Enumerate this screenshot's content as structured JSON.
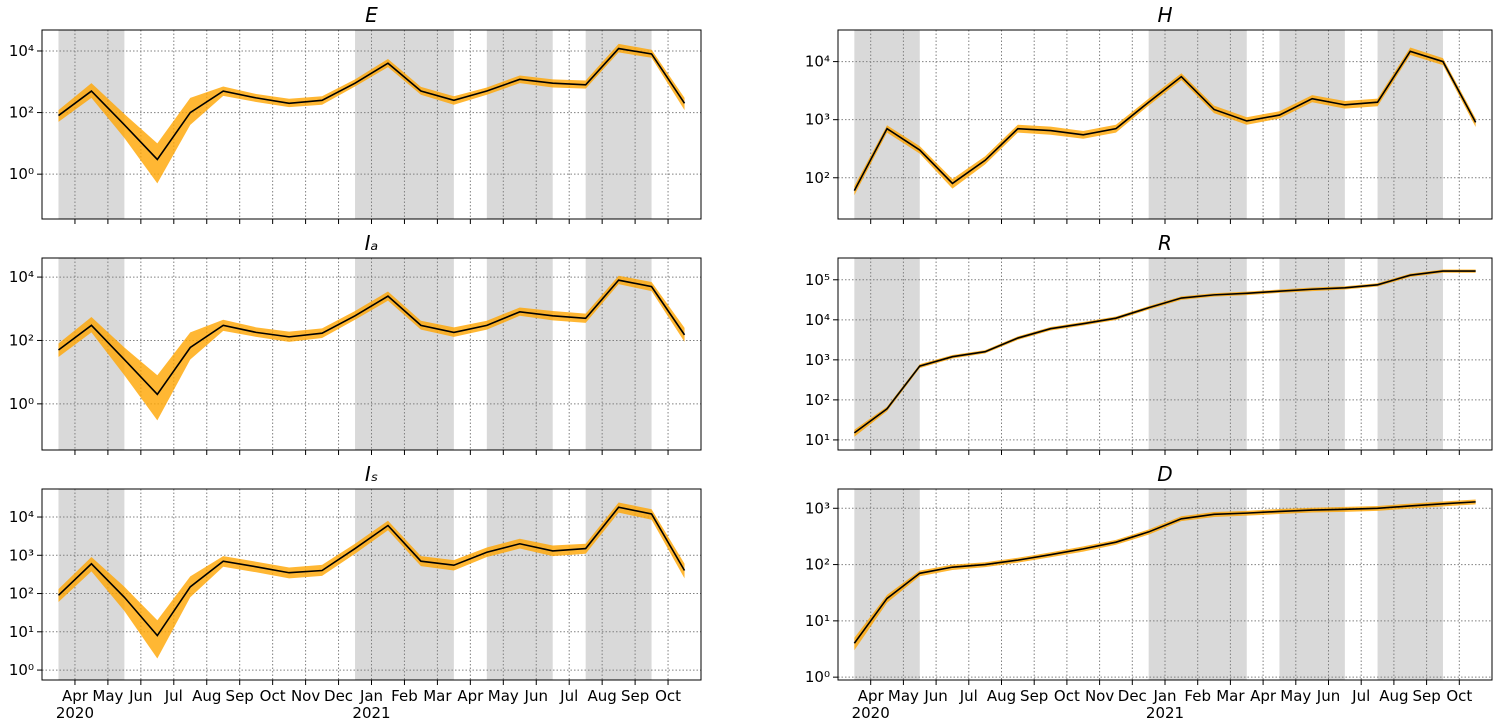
{
  "chart_data": [
    {
      "type": "line",
      "title": "E",
      "log_scale": true,
      "grid": true,
      "color": "#000000",
      "band_color": "#ffa500",
      "shade_color": "#d9d9d9",
      "x": [
        "2020-03",
        "2020-04",
        "2020-05",
        "2020-06",
        "2020-07",
        "2020-08",
        "2020-09",
        "2020-10",
        "2020-11",
        "2020-12",
        "2021-01",
        "2021-02",
        "2021-03",
        "2021-04",
        "2021-05",
        "2021-06",
        "2021-07",
        "2021-08",
        "2021-09",
        "2021-10"
      ],
      "values": [
        80,
        500,
        40,
        3,
        100,
        500,
        300,
        200,
        250,
        900,
        4000,
        500,
        250,
        500,
        1200,
        900,
        800,
        12000,
        8000,
        200
      ],
      "lower": [
        50,
        300,
        15,
        0.5,
        40,
        350,
        220,
        150,
        180,
        700,
        3000,
        380,
        180,
        380,
        900,
        650,
        600,
        9000,
        6000,
        120
      ],
      "upper": [
        120,
        900,
        90,
        10,
        300,
        700,
        400,
        280,
        340,
        1200,
        5500,
        680,
        340,
        650,
        1600,
        1200,
        1100,
        17000,
        11000,
        300
      ],
      "xlim": [
        "2020-03",
        "2021-10"
      ],
      "xticks": [
        "2020-04",
        "2020-05",
        "2020-06",
        "2020-07",
        "2020-08",
        "2020-09",
        "2020-10",
        "2020-11",
        "2020-12",
        "2021-01",
        "2021-02",
        "2021-03",
        "2021-04",
        "2021-05",
        "2021-06",
        "2021-07",
        "2021-08",
        "2021-09",
        "2021-10"
      ],
      "ylim": [
        0.035,
        48000
      ],
      "yticks": [
        {
          "value": 1,
          "label": "10⁰"
        },
        {
          "value": 100,
          "label": "10²"
        },
        {
          "value": 10000,
          "label": "10⁴"
        }
      ],
      "shaded_periods": [
        [
          "2020-03",
          "2020-05"
        ],
        [
          "2020-12",
          "2021-03"
        ],
        [
          "2021-04",
          "2021-06"
        ],
        [
          "2021-07",
          "2021-09"
        ]
      ]
    },
    {
      "type": "line",
      "title": "H",
      "log_scale": true,
      "grid": true,
      "color": "#000000",
      "band_color": "#ffa500",
      "shade_color": "#d9d9d9",
      "x": [
        "2020-03",
        "2020-04",
        "2020-05",
        "2020-06",
        "2020-07",
        "2020-08",
        "2020-09",
        "2020-10",
        "2020-11",
        "2020-12",
        "2021-01",
        "2021-02",
        "2021-03",
        "2021-04",
        "2021-05",
        "2021-06",
        "2021-07",
        "2021-08",
        "2021-09",
        "2021-10"
      ],
      "values": [
        60,
        700,
        300,
        80,
        200,
        700,
        650,
        550,
        700,
        2000,
        5500,
        1500,
        950,
        1200,
        2300,
        1800,
        2000,
        15000,
        10000,
        900
      ],
      "lower": [
        50,
        600,
        260,
        65,
        170,
        600,
        550,
        470,
        600,
        1750,
        4800,
        1300,
        820,
        1050,
        2000,
        1550,
        1700,
        13000,
        8700,
        750
      ],
      "upper": [
        72,
        800,
        350,
        95,
        235,
        820,
        760,
        640,
        820,
        2300,
        6300,
        1750,
        1100,
        1400,
        2650,
        2100,
        2300,
        17500,
        11500,
        1050
      ],
      "xlim": [
        "2020-03",
        "2021-10"
      ],
      "xticks": [
        "2020-04",
        "2020-05",
        "2020-06",
        "2020-07",
        "2020-08",
        "2020-09",
        "2020-10",
        "2020-11",
        "2020-12",
        "2021-01",
        "2021-02",
        "2021-03",
        "2021-04",
        "2021-05",
        "2021-06",
        "2021-07",
        "2021-08",
        "2021-09",
        "2021-10"
      ],
      "ylim": [
        19.5,
        35000
      ],
      "yticks": [
        {
          "value": 100,
          "label": "10²"
        },
        {
          "value": 1000,
          "label": "10³"
        },
        {
          "value": 10000,
          "label": "10⁴"
        }
      ],
      "shaded_periods": [
        [
          "2020-03",
          "2020-05"
        ],
        [
          "2020-12",
          "2021-03"
        ],
        [
          "2021-04",
          "2021-06"
        ],
        [
          "2021-07",
          "2021-09"
        ]
      ]
    },
    {
      "type": "line",
      "title": "Iₐ",
      "log_scale": true,
      "grid": true,
      "color": "#000000",
      "band_color": "#ffa500",
      "shade_color": "#d9d9d9",
      "x": [
        "2020-03",
        "2020-04",
        "2020-05",
        "2020-06",
        "2020-07",
        "2020-08",
        "2020-09",
        "2020-10",
        "2020-11",
        "2020-12",
        "2021-01",
        "2021-02",
        "2021-03",
        "2021-04",
        "2021-05",
        "2021-06",
        "2021-07",
        "2021-08",
        "2021-09",
        "2021-10"
      ],
      "values": [
        50,
        300,
        25,
        2,
        60,
        300,
        180,
        130,
        170,
        600,
        2500,
        300,
        180,
        300,
        800,
        600,
        500,
        8000,
        5000,
        150
      ],
      "lower": [
        30,
        180,
        8,
        0.3,
        25,
        200,
        130,
        90,
        120,
        450,
        1800,
        220,
        130,
        220,
        600,
        430,
        360,
        6000,
        3600,
        90
      ],
      "upper": [
        80,
        550,
        60,
        8,
        180,
        450,
        260,
        190,
        240,
        850,
        3500,
        420,
        260,
        420,
        1100,
        850,
        700,
        11000,
        7000,
        250
      ],
      "xlim": [
        "2020-03",
        "2021-10"
      ],
      "xticks": [
        "2020-04",
        "2020-05",
        "2020-06",
        "2020-07",
        "2020-08",
        "2020-09",
        "2020-10",
        "2020-11",
        "2020-12",
        "2021-01",
        "2021-02",
        "2021-03",
        "2021-04",
        "2021-05",
        "2021-06",
        "2021-07",
        "2021-08",
        "2021-09",
        "2021-10"
      ],
      "ylim": [
        0.035,
        40000
      ],
      "yticks": [
        {
          "value": 1,
          "label": "10⁰"
        },
        {
          "value": 100,
          "label": "10²"
        },
        {
          "value": 10000,
          "label": "10⁴"
        }
      ],
      "shaded_periods": [
        [
          "2020-03",
          "2020-05"
        ],
        [
          "2020-12",
          "2021-03"
        ],
        [
          "2021-04",
          "2021-06"
        ],
        [
          "2021-07",
          "2021-09"
        ]
      ]
    },
    {
      "type": "line",
      "title": "R",
      "log_scale": true,
      "grid": true,
      "color": "#000000",
      "band_color": "#ffa500",
      "shade_color": "#d9d9d9",
      "x": [
        "2020-03",
        "2020-04",
        "2020-05",
        "2020-06",
        "2020-07",
        "2020-08",
        "2020-09",
        "2020-10",
        "2020-11",
        "2020-12",
        "2021-01",
        "2021-02",
        "2021-03",
        "2021-04",
        "2021-05",
        "2021-06",
        "2021-07",
        "2021-08",
        "2021-09",
        "2021-10"
      ],
      "values": [
        15,
        60,
        700,
        1200,
        1600,
        3500,
        6000,
        8000,
        11000,
        20000,
        35000,
        42000,
        46000,
        52000,
        58000,
        63000,
        75000,
        130000,
        165000,
        165000
      ],
      "lower": [
        12,
        52,
        620,
        1080,
        1450,
        3150,
        5400,
        7200,
        9900,
        18000,
        31500,
        38000,
        41500,
        47000,
        52000,
        57000,
        68000,
        117000,
        150000,
        150000
      ],
      "upper": [
        18,
        68,
        780,
        1320,
        1750,
        3850,
        6600,
        8800,
        12100,
        22000,
        38500,
        46000,
        50500,
        57000,
        64000,
        69000,
        82000,
        143000,
        180000,
        180000
      ],
      "xlim": [
        "2020-03",
        "2021-10"
      ],
      "xticks": [
        "2020-04",
        "2020-05",
        "2020-06",
        "2020-07",
        "2020-08",
        "2020-09",
        "2020-10",
        "2020-11",
        "2020-12",
        "2021-01",
        "2021-02",
        "2021-03",
        "2021-04",
        "2021-05",
        "2021-06",
        "2021-07",
        "2021-08",
        "2021-09",
        "2021-10"
      ],
      "ylim": [
        5.6,
        350000
      ],
      "yticks": [
        {
          "value": 10,
          "label": "10¹"
        },
        {
          "value": 100,
          "label": "10²"
        },
        {
          "value": 1000,
          "label": "10³"
        },
        {
          "value": 10000,
          "label": "10⁴"
        },
        {
          "value": 100000,
          "label": "10⁵"
        }
      ],
      "shaded_periods": [
        [
          "2020-03",
          "2020-05"
        ],
        [
          "2020-12",
          "2021-03"
        ],
        [
          "2021-04",
          "2021-06"
        ],
        [
          "2021-07",
          "2021-09"
        ]
      ]
    },
    {
      "type": "line",
      "title": "Iₛ",
      "log_scale": true,
      "grid": true,
      "color": "#000000",
      "band_color": "#ffa500",
      "shade_color": "#d9d9d9",
      "x": [
        "2020-03",
        "2020-04",
        "2020-05",
        "2020-06",
        "2020-07",
        "2020-08",
        "2020-09",
        "2020-10",
        "2020-11",
        "2020-12",
        "2021-01",
        "2021-02",
        "2021-03",
        "2021-04",
        "2021-05",
        "2021-06",
        "2021-07",
        "2021-08",
        "2021-09",
        "2021-10"
      ],
      "values": [
        90,
        600,
        80,
        8,
        150,
        700,
        500,
        350,
        400,
        1500,
        6000,
        700,
        550,
        1200,
        2000,
        1300,
        1500,
        18000,
        12000,
        400
      ],
      "lower": [
        60,
        380,
        35,
        2,
        80,
        500,
        360,
        250,
        290,
        1100,
        4500,
        520,
        400,
        900,
        1500,
        950,
        1100,
        13000,
        8500,
        250
      ],
      "upper": [
        130,
        900,
        150,
        20,
        280,
        950,
        680,
        480,
        560,
        2000,
        8000,
        950,
        750,
        1600,
        2700,
        1800,
        2000,
        24000,
        16000,
        600
      ],
      "xlim": [
        "2020-03",
        "2021-10"
      ],
      "xticks": [
        {
          "value": "2020-04",
          "label": "Apr\n2020"
        },
        {
          "value": "2020-05",
          "label": "May"
        },
        {
          "value": "2020-06",
          "label": "Jun"
        },
        {
          "value": "2020-07",
          "label": "Jul"
        },
        {
          "value": "2020-08",
          "label": "Aug"
        },
        {
          "value": "2020-09",
          "label": "Sep"
        },
        {
          "value": "2020-10",
          "label": "Oct"
        },
        {
          "value": "2020-11",
          "label": "Nov"
        },
        {
          "value": "2020-12",
          "label": "Dec"
        },
        {
          "value": "2021-01",
          "label": "Jan\n2021"
        },
        {
          "value": "2021-02",
          "label": "Feb"
        },
        {
          "value": "2021-03",
          "label": "Mar"
        },
        {
          "value": "2021-04",
          "label": "Apr"
        },
        {
          "value": "2021-05",
          "label": "May"
        },
        {
          "value": "2021-06",
          "label": "Jun"
        },
        {
          "value": "2021-07",
          "label": "Jul"
        },
        {
          "value": "2021-08",
          "label": "Aug"
        },
        {
          "value": "2021-09",
          "label": "Sep"
        },
        {
          "value": "2021-10",
          "label": "Oct"
        }
      ],
      "ylim": [
        0.55,
        54000
      ],
      "yticks": [
        {
          "value": 1,
          "label": "10⁰"
        },
        {
          "value": 10,
          "label": "10¹"
        },
        {
          "value": 100,
          "label": "10²"
        },
        {
          "value": 1000,
          "label": "10³"
        },
        {
          "value": 10000,
          "label": "10⁴"
        }
      ],
      "shaded_periods": [
        [
          "2020-03",
          "2020-05"
        ],
        [
          "2020-12",
          "2021-03"
        ],
        [
          "2021-04",
          "2021-06"
        ],
        [
          "2021-07",
          "2021-09"
        ]
      ]
    },
    {
      "type": "line",
      "title": "D",
      "log_scale": true,
      "grid": true,
      "color": "#000000",
      "band_color": "#ffa500",
      "shade_color": "#d9d9d9",
      "x": [
        "2020-03",
        "2020-04",
        "2020-05",
        "2020-06",
        "2020-07",
        "2020-08",
        "2020-09",
        "2020-10",
        "2020-11",
        "2020-12",
        "2021-01",
        "2021-02",
        "2021-03",
        "2021-04",
        "2021-05",
        "2021-06",
        "2021-07",
        "2021-08",
        "2021-09",
        "2021-10"
      ],
      "values": [
        4,
        25,
        70,
        90,
        100,
        120,
        150,
        190,
        250,
        380,
        650,
        780,
        820,
        880,
        930,
        960,
        1000,
        1100,
        1200,
        1300
      ],
      "lower": [
        3,
        21,
        62,
        80,
        90,
        108,
        135,
        170,
        225,
        340,
        590,
        700,
        740,
        790,
        840,
        865,
        900,
        990,
        1080,
        1170
      ],
      "upper": [
        5,
        29,
        78,
        100,
        110,
        132,
        165,
        210,
        275,
        420,
        720,
        860,
        900,
        970,
        1020,
        1060,
        1100,
        1210,
        1320,
        1430
      ],
      "xlim": [
        "2020-03",
        "2021-10"
      ],
      "xticks": [
        {
          "value": "2020-04",
          "label": "Apr\n2020"
        },
        {
          "value": "2020-05",
          "label": "May"
        },
        {
          "value": "2020-06",
          "label": "Jun"
        },
        {
          "value": "2020-07",
          "label": "Jul"
        },
        {
          "value": "2020-08",
          "label": "Aug"
        },
        {
          "value": "2020-09",
          "label": "Sep"
        },
        {
          "value": "2020-10",
          "label": "Oct"
        },
        {
          "value": "2020-11",
          "label": "Nov"
        },
        {
          "value": "2020-12",
          "label": "Dec"
        },
        {
          "value": "2021-01",
          "label": "Jan\n2021"
        },
        {
          "value": "2021-02",
          "label": "Feb"
        },
        {
          "value": "2021-03",
          "label": "Mar"
        },
        {
          "value": "2021-04",
          "label": "Apr"
        },
        {
          "value": "2021-05",
          "label": "May"
        },
        {
          "value": "2021-06",
          "label": "Jun"
        },
        {
          "value": "2021-07",
          "label": "Jul"
        },
        {
          "value": "2021-08",
          "label": "Aug"
        },
        {
          "value": "2021-09",
          "label": "Sep"
        },
        {
          "value": "2021-10",
          "label": "Oct"
        }
      ],
      "ylim": [
        0.89,
        2200
      ],
      "yticks": [
        {
          "value": 1,
          "label": "10⁰"
        },
        {
          "value": 10,
          "label": "10¹"
        },
        {
          "value": 100,
          "label": "10²"
        },
        {
          "value": 1000,
          "label": "10³"
        }
      ],
      "shaded_periods": [
        [
          "2020-03",
          "2020-05"
        ],
        [
          "2020-12",
          "2021-03"
        ],
        [
          "2021-04",
          "2021-06"
        ],
        [
          "2021-07",
          "2021-09"
        ]
      ]
    }
  ]
}
